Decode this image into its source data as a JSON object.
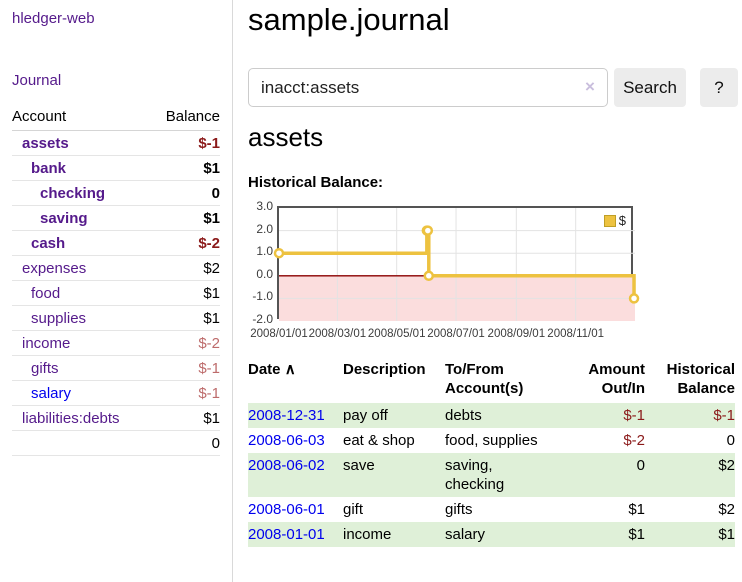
{
  "colors": {
    "link_purple": "#551a8b",
    "link_blue": "#0000ee",
    "negative_strong": "#8b1a1a",
    "negative_muted": "#bd6b6b",
    "row_shade_green": "#dff0d8",
    "series_gold": "#edc240"
  },
  "sidebar": {
    "brand": "hledger-web",
    "nav_journal": "Journal",
    "accounts_table": {
      "headers": [
        "Account",
        "Balance"
      ],
      "rows": [
        {
          "account": "assets",
          "indent": 0,
          "bold": true,
          "balance": "$-1",
          "balance_class": "neg",
          "link_color": "purple"
        },
        {
          "account": "bank",
          "indent": 1,
          "bold": true,
          "balance": "$1",
          "balance_class": "",
          "link_color": "purple"
        },
        {
          "account": "checking",
          "indent": 2,
          "bold": true,
          "balance": "0",
          "balance_class": "",
          "link_color": "purple"
        },
        {
          "account": "saving",
          "indent": 2,
          "bold": true,
          "balance": "$1",
          "balance_class": "",
          "link_color": "purple"
        },
        {
          "account": "cash",
          "indent": 1,
          "bold": true,
          "balance": "$-2",
          "balance_class": "neg",
          "link_color": "purple"
        },
        {
          "account": "expenses",
          "indent": 0,
          "bold": false,
          "balance": "$2",
          "balance_class": "",
          "link_color": "purple"
        },
        {
          "account": "food",
          "indent": 1,
          "bold": false,
          "balance": "$1",
          "balance_class": "",
          "link_color": "purple"
        },
        {
          "account": "supplies",
          "indent": 1,
          "bold": false,
          "balance": "$1",
          "balance_class": "",
          "link_color": "purple"
        },
        {
          "account": "income",
          "indent": 0,
          "bold": false,
          "balance": "$-2",
          "balance_class": "muted",
          "link_color": "purple"
        },
        {
          "account": "gifts",
          "indent": 1,
          "bold": false,
          "balance": "$-1",
          "balance_class": "muted",
          "link_color": "purple"
        },
        {
          "account": "salary",
          "indent": 1,
          "bold": false,
          "balance": "$-1",
          "balance_class": "muted",
          "link_color": "blue"
        },
        {
          "account": "liabilities:debts",
          "indent": 0,
          "bold": false,
          "balance": "$1",
          "balance_class": "",
          "link_color": "purple"
        }
      ],
      "total": "0"
    }
  },
  "main": {
    "page_title": "sample.journal",
    "search": {
      "value": "inacct:assets",
      "clear_icon": "×",
      "search_button": "Search",
      "help_button": "?"
    },
    "account_heading": "assets",
    "chart_title": "Historical Balance:"
  },
  "chart_data": {
    "type": "line",
    "step": true,
    "title": "Historical Balance:",
    "xlabel": "",
    "ylabel": "",
    "x_range": [
      "2008-01-01",
      "2009-01-01"
    ],
    "ylim": [
      -2,
      3
    ],
    "grid": true,
    "legend_position": "top-right",
    "negative_region_color": "#fbdddd",
    "zero_line_color": "#8b0000",
    "yticks": [
      {
        "value": 3,
        "label": "3.0"
      },
      {
        "value": 2,
        "label": "2.0"
      },
      {
        "value": 1,
        "label": "1.0"
      },
      {
        "value": 0,
        "label": "0.0"
      },
      {
        "value": -1,
        "label": "-1.0"
      },
      {
        "value": -2,
        "label": "-2.0"
      }
    ],
    "xticks": [
      {
        "date": "2008-01-01",
        "label": "2008/01/01"
      },
      {
        "date": "2008-03-01",
        "label": "2008/03/01"
      },
      {
        "date": "2008-05-01",
        "label": "2008/05/01"
      },
      {
        "date": "2008-07-01",
        "label": "2008/07/01"
      },
      {
        "date": "2008-09-01",
        "label": "2008/09/01"
      },
      {
        "date": "2008-11-01",
        "label": "2008/11/01"
      }
    ],
    "series": [
      {
        "name": "$",
        "color": "#edc240",
        "points": [
          [
            "2008-01-01",
            1
          ],
          [
            "2008-06-01",
            2
          ],
          [
            "2008-06-02",
            2
          ],
          [
            "2008-06-03",
            0
          ],
          [
            "2008-12-31",
            -1
          ]
        ]
      }
    ]
  },
  "register": {
    "headers": [
      {
        "label": "Date",
        "sort_icon": "∧",
        "align": "left"
      },
      {
        "label": "Description",
        "align": "left"
      },
      {
        "label": "To/From Account(s)",
        "align": "left"
      },
      {
        "label": "Amount Out/In",
        "align": "right"
      },
      {
        "label": "Historical Balance",
        "align": "right"
      }
    ],
    "rows": [
      {
        "date": "2008-12-31",
        "description": "pay off",
        "accounts": "debts",
        "amount": "$-1",
        "amount_neg": true,
        "balance": "$-1",
        "balance_neg": true,
        "shaded": true
      },
      {
        "date": "2008-06-03",
        "description": "eat & shop",
        "accounts": "food, supplies",
        "amount": "$-2",
        "amount_neg": true,
        "balance": "0",
        "balance_neg": false,
        "shaded": false
      },
      {
        "date": "2008-06-02",
        "description": "save",
        "accounts": "saving,\nchecking",
        "amount": "0",
        "amount_neg": false,
        "balance": "$2",
        "balance_neg": false,
        "shaded": true
      },
      {
        "date": "2008-06-01",
        "description": "gift",
        "accounts": "gifts",
        "amount": "$1",
        "amount_neg": false,
        "balance": "$2",
        "balance_neg": false,
        "shaded": false
      },
      {
        "date": "2008-01-01",
        "description": "income",
        "accounts": "salary",
        "amount": "$1",
        "amount_neg": false,
        "balance": "$1",
        "balance_neg": false,
        "shaded": true
      }
    ]
  }
}
